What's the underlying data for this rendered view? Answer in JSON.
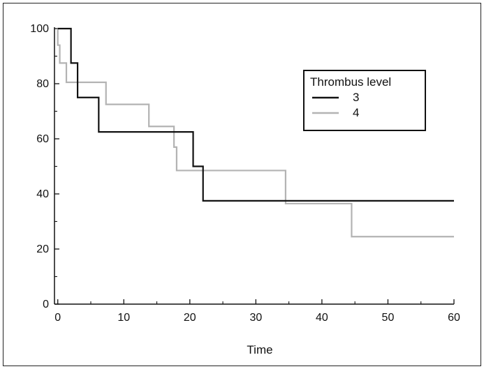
{
  "chart_data": {
    "type": "line",
    "subtype": "step",
    "title": "",
    "xlabel": "Time",
    "ylabel": "",
    "xlim": [
      -0.5,
      60
    ],
    "ylim": [
      0,
      100
    ],
    "x_ticks": [
      0,
      10,
      20,
      30,
      40,
      50,
      60
    ],
    "y_ticks": [
      0,
      20,
      40,
      60,
      80,
      100
    ],
    "grid": false,
    "legend": {
      "title": "Thrombus level",
      "position": "top-right"
    },
    "series": [
      {
        "name": "3",
        "color": "#111111",
        "x": [
          0,
          2,
          2,
          3,
          3,
          6.2,
          6.2,
          20.5,
          20.5,
          22,
          22,
          60
        ],
        "y": [
          100,
          100,
          87.5,
          87.5,
          75,
          75,
          62.5,
          62.5,
          50,
          50,
          37.5,
          37.5
        ]
      },
      {
        "name": "4",
        "color": "#b3b3b3",
        "x": [
          0,
          0,
          0.3,
          0.3,
          1.3,
          1.3,
          7.3,
          7.3,
          13.8,
          13.8,
          17.6,
          17.6,
          18,
          18,
          34.5,
          34.5,
          44.5,
          44.5,
          60
        ],
        "y": [
          100,
          94,
          94,
          87.5,
          87.5,
          80.5,
          80.5,
          72.5,
          72.5,
          64.5,
          64.5,
          57,
          57,
          48.5,
          48.5,
          36.5,
          36.5,
          24.5,
          24.5
        ]
      }
    ]
  }
}
